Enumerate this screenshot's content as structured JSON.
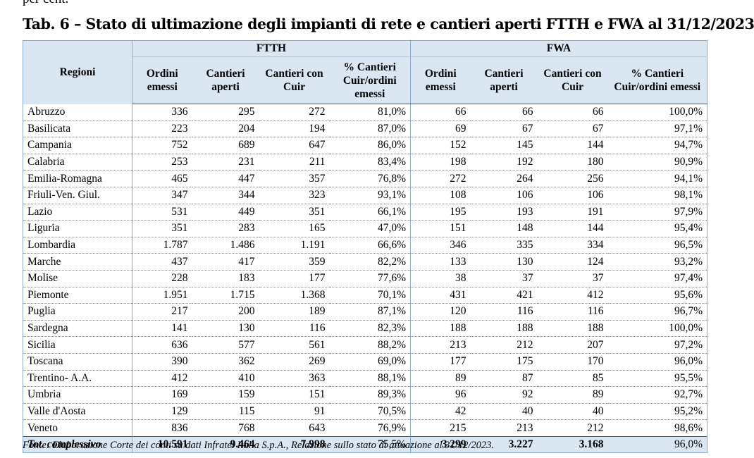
{
  "previous_text": "per cent.",
  "title": "Tab. 6 – Stato di ultimazione degli impianti di rete e cantieri aperti FTTH e FWA al 31/12/2023",
  "header": {
    "regioni": "Regioni",
    "group_ftth": "FTTH",
    "group_fwa": "FWA",
    "ftth_cols": [
      "Ordini emessi",
      "Cantieri aperti",
      "Cantieri con Cuir",
      "% Cantieri Cuir/ordini emessi"
    ],
    "fwa_cols": [
      "Ordini emessi",
      "Cantieri aperti",
      "Cantieri con Cuir",
      "% Cantieri Cuir/ordini emessi"
    ]
  },
  "rows": [
    [
      "Abruzzo",
      "336",
      "295",
      "272",
      "81,0%",
      "66",
      "66",
      "66",
      "100,0%"
    ],
    [
      "Basilicata",
      "223",
      "204",
      "194",
      "87,0%",
      "69",
      "67",
      "67",
      "97,1%"
    ],
    [
      "Campania",
      "752",
      "689",
      "647",
      "86,0%",
      "152",
      "145",
      "144",
      "94,7%"
    ],
    [
      "Calabria",
      "253",
      "231",
      "211",
      "83,4%",
      "198",
      "192",
      "180",
      "90,9%"
    ],
    [
      "Emilia-Romagna",
      "465",
      "447",
      "357",
      "76,8%",
      "272",
      "264",
      "256",
      "94,1%"
    ],
    [
      "Friuli-Ven. Giul.",
      "347",
      "344",
      "323",
      "93,1%",
      "108",
      "106",
      "106",
      "98,1%"
    ],
    [
      "Lazio",
      "531",
      "449",
      "351",
      "66,1%",
      "195",
      "193",
      "191",
      "97,9%"
    ],
    [
      "Liguria",
      "351",
      "283",
      "165",
      "47,0%",
      "151",
      "148",
      "144",
      "95,4%"
    ],
    [
      "Lombardia",
      "1.787",
      "1.486",
      "1.191",
      "66,6%",
      "346",
      "335",
      "334",
      "96,5%"
    ],
    [
      "Marche",
      "437",
      "417",
      "359",
      "82,2%",
      "133",
      "130",
      "124",
      "93,2%"
    ],
    [
      "Molise",
      "228",
      "183",
      "177",
      "77,6%",
      "38",
      "37",
      "37",
      "97,4%"
    ],
    [
      "Piemonte",
      "1.951",
      "1.715",
      "1.368",
      "70,1%",
      "431",
      "421",
      "412",
      "95,6%"
    ],
    [
      "Puglia",
      "217",
      "200",
      "189",
      "87,1%",
      "120",
      "116",
      "116",
      "96,7%"
    ],
    [
      "Sardegna",
      "141",
      "130",
      "116",
      "82,3%",
      "188",
      "188",
      "188",
      "100,0%"
    ],
    [
      "Sicilia",
      "636",
      "577",
      "561",
      "88,2%",
      "213",
      "212",
      "207",
      "97,2%"
    ],
    [
      "Toscana",
      "390",
      "362",
      "269",
      "69,0%",
      "177",
      "175",
      "170",
      "96,0%"
    ],
    [
      "Trentino- A.A.",
      "412",
      "410",
      "363",
      "88,1%",
      "89",
      "87",
      "85",
      "95,5%"
    ],
    [
      "Umbria",
      "169",
      "159",
      "151",
      "89,3%",
      "96",
      "92",
      "89",
      "92,7%"
    ],
    [
      "Valle d'Aosta",
      "129",
      "115",
      "91",
      "70,5%",
      "42",
      "40",
      "40",
      "95,2%"
    ],
    [
      "Veneto",
      "836",
      "768",
      "643",
      "76,9%",
      "215",
      "213",
      "212",
      "98,6%"
    ]
  ],
  "total": [
    "Tot. complessivo",
    "10.591",
    "9.464",
    "7.998",
    "75,5%",
    "3.299",
    "3.227",
    "3.168",
    "96,0%"
  ],
  "source": "Fonte: Elaborazione Corte dei conti su dati Infratel Italia S.p.A., Relazione sullo stato di attuazione al 31/12/2023."
}
